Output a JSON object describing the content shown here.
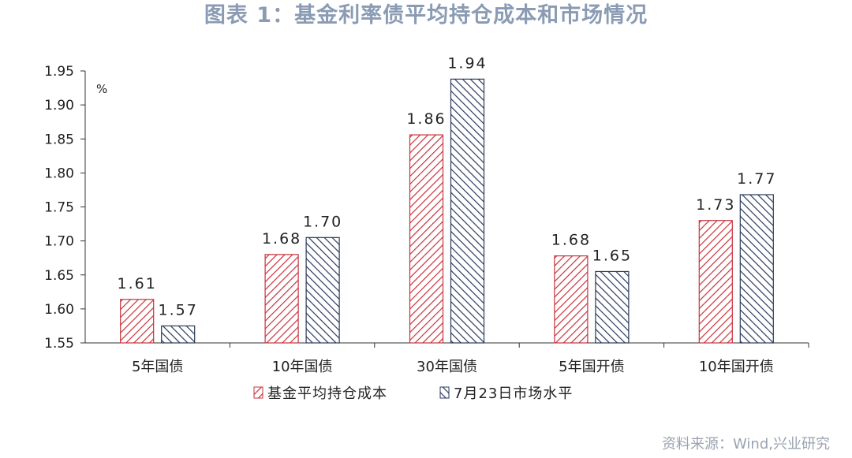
{
  "title": "图表 1：基金利率债平均持仓成本和市场情况",
  "source": "资料来源：Wind,兴业研究",
  "chart_data": {
    "type": "bar",
    "unit_label": "%",
    "categories": [
      "5年国债",
      "10年国债",
      "30年国债",
      "5年国开债",
      "10年国开债"
    ],
    "series": [
      {
        "name": "基金平均持仓成本",
        "values": [
          1.614,
          1.68,
          1.856,
          1.678,
          1.73
        ],
        "labels": [
          "1.61",
          "1.68",
          "1.86",
          "1.68",
          "1.73"
        ],
        "color": "#c8323c"
      },
      {
        "name": "7月23日市场水平",
        "values": [
          1.575,
          1.705,
          1.938,
          1.655,
          1.768
        ],
        "labels": [
          "1.57",
          "1.70",
          "1.94",
          "1.65",
          "1.77"
        ],
        "color": "#2a3a5c"
      }
    ],
    "ylim": [
      1.55,
      1.95
    ],
    "yticks": [
      "1.55",
      "1.60",
      "1.65",
      "1.70",
      "1.75",
      "1.80",
      "1.85",
      "1.90",
      "1.95"
    ],
    "grid": false,
    "legend_position": "bottom"
  }
}
